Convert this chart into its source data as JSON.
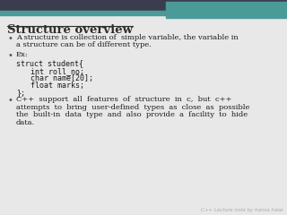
{
  "title": "Structure overview",
  "title_color": "#2e2e2e",
  "bg_color": "#e0e0e0",
  "header_dark_color": "#3a3d4d",
  "header_teal_color": "#4a9a9a",
  "content_bg": "#e8e8e8",
  "body_text_color": "#1a1a1a",
  "footer_text": "C++ Lecture note by hansa halai",
  "footer_color": "#aaaaaa",
  "bullet_char": "•",
  "bullet_color": "#555555",
  "lines": [
    {
      "type": "bullet",
      "indent": 0,
      "parts": [
        "A structure is collection of  simple variable, the variable in",
        "a structure can be of different type."
      ]
    },
    {
      "type": "bullet",
      "indent": 0,
      "parts": [
        "Ex:"
      ]
    },
    {
      "type": "code",
      "indent": 1,
      "parts": [
        "struct student{"
      ]
    },
    {
      "type": "code",
      "indent": 2,
      "parts": [
        "int roll_no;"
      ]
    },
    {
      "type": "code",
      "indent": 2,
      "parts": [
        "char name[20];"
      ]
    },
    {
      "type": "code",
      "indent": 2,
      "parts": [
        "float marks;"
      ]
    },
    {
      "type": "code",
      "indent": 1,
      "parts": [
        "};"
      ]
    },
    {
      "type": "bullet",
      "indent": 0,
      "parts": [
        "C++  support  all  features  of  structure  in  c,  but  c++",
        "attempts  to  bring  user-defined  types  as  close  as  possible",
        "the  built-in  data  type  and  also  provide  a  facility  to  hide",
        "data."
      ]
    }
  ],
  "title_fontsize": 9.5,
  "body_fontsize": 6.0,
  "code_fontsize": 6.0,
  "footer_fontsize": 4.0
}
